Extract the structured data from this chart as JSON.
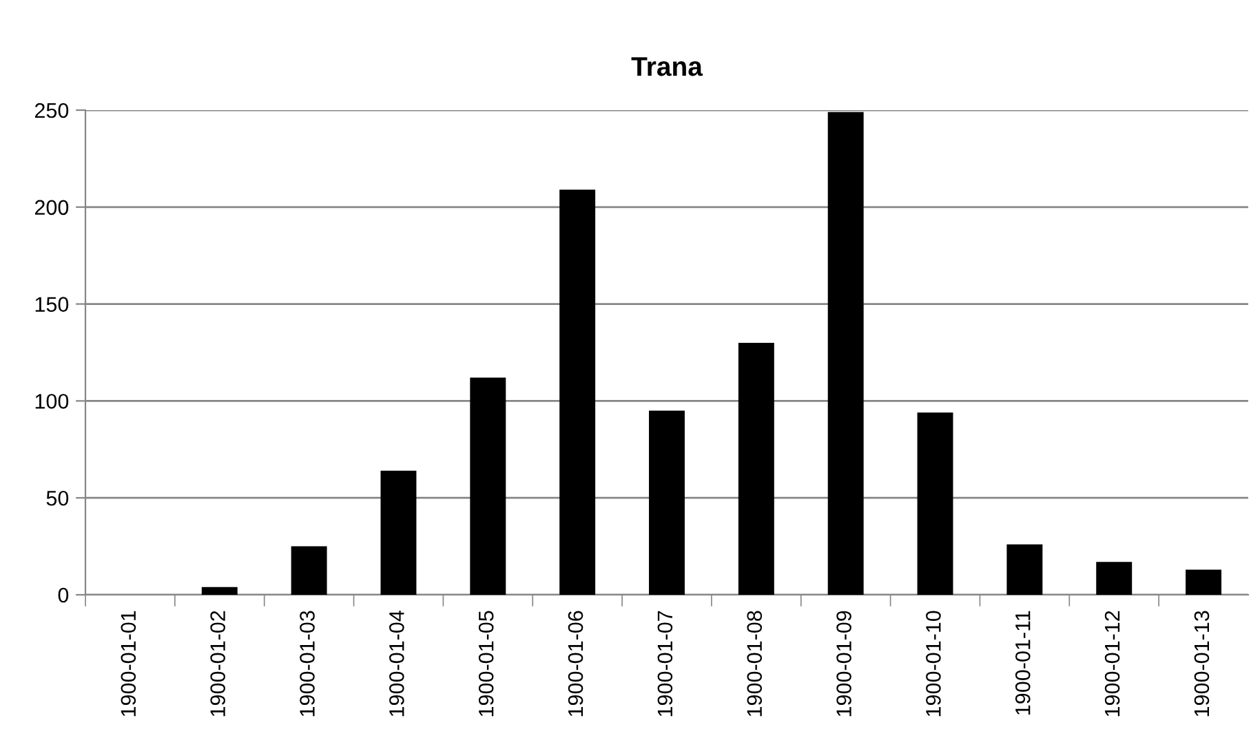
{
  "chart_data": {
    "type": "bar",
    "title": "Trana",
    "categories": [
      "1900-01-01",
      "1900-01-02",
      "1900-01-03",
      "1900-01-04",
      "1900-01-05",
      "1900-01-06",
      "1900-01-07",
      "1900-01-08",
      "1900-01-09",
      "1900-01-10",
      "1900-01-11",
      "1900-01-12",
      "1900-01-13"
    ],
    "values": [
      0,
      4,
      25,
      64,
      112,
      209,
      95,
      130,
      249,
      94,
      26,
      17,
      13
    ],
    "color": "#000000",
    "ylim": [
      0,
      250
    ],
    "yticks": [
      0,
      50,
      100,
      150,
      200,
      250
    ],
    "grid": "y",
    "legend": false
  }
}
